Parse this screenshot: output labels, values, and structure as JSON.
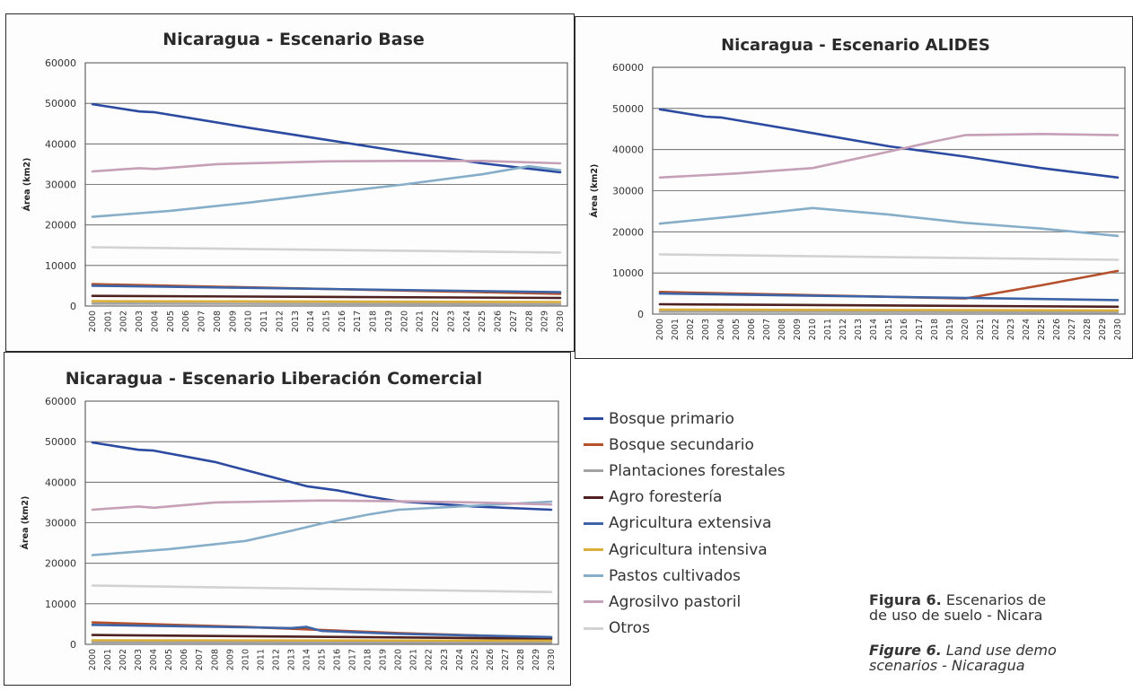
{
  "chart_data": [
    {
      "type": "line",
      "title": "Nicaragua - Escenario Base",
      "xlabel": "",
      "ylabel": "Área (km2)",
      "ylim": [
        0,
        60000
      ],
      "yticks": [
        0,
        10000,
        20000,
        30000,
        40000,
        50000,
        60000
      ],
      "x": [
        2000,
        2001,
        2002,
        2003,
        2004,
        2005,
        2006,
        2007,
        2008,
        2009,
        2010,
        2011,
        2012,
        2013,
        2014,
        2015,
        2016,
        2017,
        2018,
        2019,
        2020,
        2021,
        2022,
        2023,
        2024,
        2025,
        2026,
        2027,
        2028,
        2029,
        2030
      ],
      "grid": true,
      "legend": "shared",
      "series": [
        {
          "name": "Bosque primario",
          "color": "#2b4aa0",
          "points": [
            [
              2000,
              49800
            ],
            [
              2003,
              48000
            ],
            [
              2004,
              47800
            ],
            [
              2010,
              44000
            ],
            [
              2015,
              41000
            ],
            [
              2020,
              38000
            ],
            [
              2025,
              35200
            ],
            [
              2030,
              33000
            ]
          ]
        },
        {
          "name": "Bosque secundario",
          "color": "#b5502c",
          "points": [
            [
              2000,
              5400
            ],
            [
              2010,
              4600
            ],
            [
              2020,
              3800
            ],
            [
              2030,
              3000
            ]
          ]
        },
        {
          "name": "Plantaciones forestales",
          "color": "#a3a3a3",
          "points": [
            [
              2000,
              600
            ],
            [
              2030,
              450
            ]
          ]
        },
        {
          "name": "Agro forestería",
          "color": "#4e2020",
          "points": [
            [
              2000,
              2500
            ],
            [
              2030,
              2000
            ]
          ]
        },
        {
          "name": "Agricultura extensiva",
          "color": "#3c64a6",
          "points": [
            [
              2000,
              5000
            ],
            [
              2030,
              3400
            ]
          ]
        },
        {
          "name": "Agricultura intensiva",
          "color": "#d9ae3a",
          "points": [
            [
              2000,
              1200
            ],
            [
              2030,
              1000
            ]
          ]
        },
        {
          "name": "Pastos cultivados",
          "color": "#86aec8",
          "points": [
            [
              2000,
              22000
            ],
            [
              2005,
              23500
            ],
            [
              2010,
              25500
            ],
            [
              2015,
              27800
            ],
            [
              2020,
              30000
            ],
            [
              2025,
              32500
            ],
            [
              2028,
              34500
            ],
            [
              2030,
              33500
            ]
          ]
        },
        {
          "name": "Agrosilvo pastoril",
          "color": "#c6a0b6",
          "points": [
            [
              2000,
              33200
            ],
            [
              2003,
              34000
            ],
            [
              2004,
              33800
            ],
            [
              2008,
              35000
            ],
            [
              2015,
              35700
            ],
            [
              2020,
              35800
            ],
            [
              2025,
              35800
            ],
            [
              2030,
              35200
            ]
          ]
        },
        {
          "name": "Otros",
          "color": "#d2d2d2",
          "points": [
            [
              2000,
              14500
            ],
            [
              2030,
              13200
            ]
          ]
        }
      ]
    },
    {
      "type": "line",
      "title": "Nicaragua - Escenario ALIDES",
      "xlabel": "",
      "ylabel": "Área (km2)",
      "ylim": [
        0,
        60000
      ],
      "yticks": [
        0,
        10000,
        20000,
        30000,
        40000,
        50000,
        60000
      ],
      "x": [
        2000,
        2001,
        2002,
        2003,
        2004,
        2005,
        2006,
        2007,
        2008,
        2009,
        2010,
        2011,
        2012,
        2013,
        2014,
        2015,
        2016,
        2017,
        2018,
        2019,
        2020,
        2021,
        2022,
        2023,
        2024,
        2025,
        2026,
        2027,
        2028,
        2029,
        2030
      ],
      "grid": true,
      "legend": "shared",
      "series": [
        {
          "name": "Bosque primario",
          "color": "#2b4aa0",
          "points": [
            [
              2000,
              49800
            ],
            [
              2003,
              48000
            ],
            [
              2004,
              47800
            ],
            [
              2010,
              44000
            ],
            [
              2015,
              40800
            ],
            [
              2020,
              38300
            ],
            [
              2025,
              35500
            ],
            [
              2030,
              33200
            ]
          ]
        },
        {
          "name": "Bosque secundario",
          "color": "#b5502c",
          "points": [
            [
              2000,
              5400
            ],
            [
              2010,
              4600
            ],
            [
              2020,
              3800
            ],
            [
              2025,
              7000
            ],
            [
              2030,
              10500
            ]
          ]
        },
        {
          "name": "Plantaciones forestales",
          "color": "#a3a3a3",
          "points": [
            [
              2000,
              600
            ],
            [
              2030,
              450
            ]
          ]
        },
        {
          "name": "Agro forestería",
          "color": "#4e2020",
          "points": [
            [
              2000,
              2400
            ],
            [
              2030,
              1800
            ]
          ]
        },
        {
          "name": "Agricultura extensiva",
          "color": "#3c64a6",
          "points": [
            [
              2000,
              5000
            ],
            [
              2030,
              3400
            ]
          ]
        },
        {
          "name": "Agricultura intensiva",
          "color": "#d9ae3a",
          "points": [
            [
              2000,
              1100
            ],
            [
              2030,
              900
            ]
          ]
        },
        {
          "name": "Pastos cultivados",
          "color": "#86aec8",
          "points": [
            [
              2000,
              22000
            ],
            [
              2005,
              23800
            ],
            [
              2010,
              25800
            ],
            [
              2015,
              24200
            ],
            [
              2020,
              22200
            ],
            [
              2025,
              20800
            ],
            [
              2030,
              19000
            ]
          ]
        },
        {
          "name": "Agrosilvo pastoril",
          "color": "#c6a0b6",
          "points": [
            [
              2000,
              33200
            ],
            [
              2005,
              34200
            ],
            [
              2010,
              35500
            ],
            [
              2015,
              39500
            ],
            [
              2018,
              42000
            ],
            [
              2020,
              43500
            ],
            [
              2025,
              43800
            ],
            [
              2030,
              43500
            ]
          ]
        },
        {
          "name": "Otros",
          "color": "#d2d2d2",
          "points": [
            [
              2000,
              14500
            ],
            [
              2030,
              13200
            ]
          ]
        }
      ]
    },
    {
      "type": "line",
      "title": "Nicaragua - Escenario Liberación Comercial",
      "xlabel": "",
      "ylabel": "Área (km2)",
      "ylim": [
        0,
        60000
      ],
      "yticks": [
        0,
        10000,
        20000,
        30000,
        40000,
        50000,
        60000
      ],
      "x": [
        2000,
        2001,
        2002,
        2003,
        2004,
        2005,
        2006,
        2007,
        2008,
        2009,
        2010,
        2011,
        2012,
        2013,
        2014,
        2015,
        2016,
        2017,
        2018,
        2019,
        2020,
        2021,
        2022,
        2023,
        2024,
        2025,
        2026,
        2027,
        2028,
        2029,
        2030
      ],
      "grid": true,
      "legend": "shared",
      "series": [
        {
          "name": "Bosque primario",
          "color": "#2b4aa0",
          "points": [
            [
              2000,
              49800
            ],
            [
              2003,
              48000
            ],
            [
              2004,
              47800
            ],
            [
              2008,
              45000
            ],
            [
              2010,
              43000
            ],
            [
              2012,
              41000
            ],
            [
              2014,
              39000
            ],
            [
              2016,
              38000
            ],
            [
              2018,
              36500
            ],
            [
              2020,
              35300
            ],
            [
              2025,
              34000
            ],
            [
              2030,
              33200
            ]
          ]
        },
        {
          "name": "Bosque secundario",
          "color": "#b5502c",
          "points": [
            [
              2000,
              5400
            ],
            [
              2010,
              4300
            ],
            [
              2020,
              2800
            ],
            [
              2030,
              1600
            ]
          ]
        },
        {
          "name": "Plantaciones forestales",
          "color": "#a3a3a3",
          "points": [
            [
              2000,
              500
            ],
            [
              2030,
              400
            ]
          ]
        },
        {
          "name": "Agro forestería",
          "color": "#4e2020",
          "points": [
            [
              2000,
              2300
            ],
            [
              2030,
              1400
            ]
          ]
        },
        {
          "name": "Agricultura extensiva",
          "color": "#3c64a6",
          "points": [
            [
              2000,
              4800
            ],
            [
              2010,
              4200
            ],
            [
              2013,
              4000
            ],
            [
              2014,
              4300
            ],
            [
              2015,
              3300
            ],
            [
              2020,
              2600
            ],
            [
              2030,
              1800
            ]
          ]
        },
        {
          "name": "Agricultura intensiva",
          "color": "#d9ae3a",
          "points": [
            [
              2000,
              1000
            ],
            [
              2030,
              900
            ]
          ]
        },
        {
          "name": "Pastos cultivados",
          "color": "#86aec8",
          "points": [
            [
              2000,
              22000
            ],
            [
              2005,
              23500
            ],
            [
              2010,
              25500
            ],
            [
              2013,
              28000
            ],
            [
              2015,
              29800
            ],
            [
              2018,
              32000
            ],
            [
              2020,
              33200
            ],
            [
              2025,
              34200
            ],
            [
              2030,
              35200
            ]
          ]
        },
        {
          "name": "Agrosilvo pastoril",
          "color": "#c6a0b6",
          "points": [
            [
              2000,
              33200
            ],
            [
              2003,
              34000
            ],
            [
              2004,
              33700
            ],
            [
              2008,
              35000
            ],
            [
              2015,
              35500
            ],
            [
              2020,
              35300
            ],
            [
              2025,
              35000
            ],
            [
              2030,
              34500
            ]
          ]
        },
        {
          "name": "Otros",
          "color": "#d2d2d2",
          "points": [
            [
              2000,
              14500
            ],
            [
              2030,
              12900
            ]
          ]
        }
      ]
    }
  ],
  "legend": {
    "items": [
      {
        "label": "Bosque primario",
        "color": "#2b4aa0"
      },
      {
        "label": "Bosque secundario",
        "color": "#b5502c"
      },
      {
        "label": "Plantaciones forestales",
        "color": "#a3a3a3"
      },
      {
        "label": "Agro forestería",
        "color": "#4e2020"
      },
      {
        "label": "Agricultura extensiva",
        "color": "#3c64a6"
      },
      {
        "label": "Agricultura intensiva",
        "color": "#d9ae3a"
      },
      {
        "label": "Pastos cultivados",
        "color": "#86aec8"
      },
      {
        "label": "Agrosilvo pastoril",
        "color": "#c6a0b6"
      },
      {
        "label": "Otros",
        "color": "#d2d2d2"
      }
    ]
  },
  "caption": {
    "es_label": "Figura 6.",
    "es_line1": "Escenarios de",
    "es_line2": "de uso de suelo - Nicara",
    "en_label": "Figure 6.",
    "en_line1": "Land use demo",
    "en_line2": "scenarios - Nicaragua"
  }
}
